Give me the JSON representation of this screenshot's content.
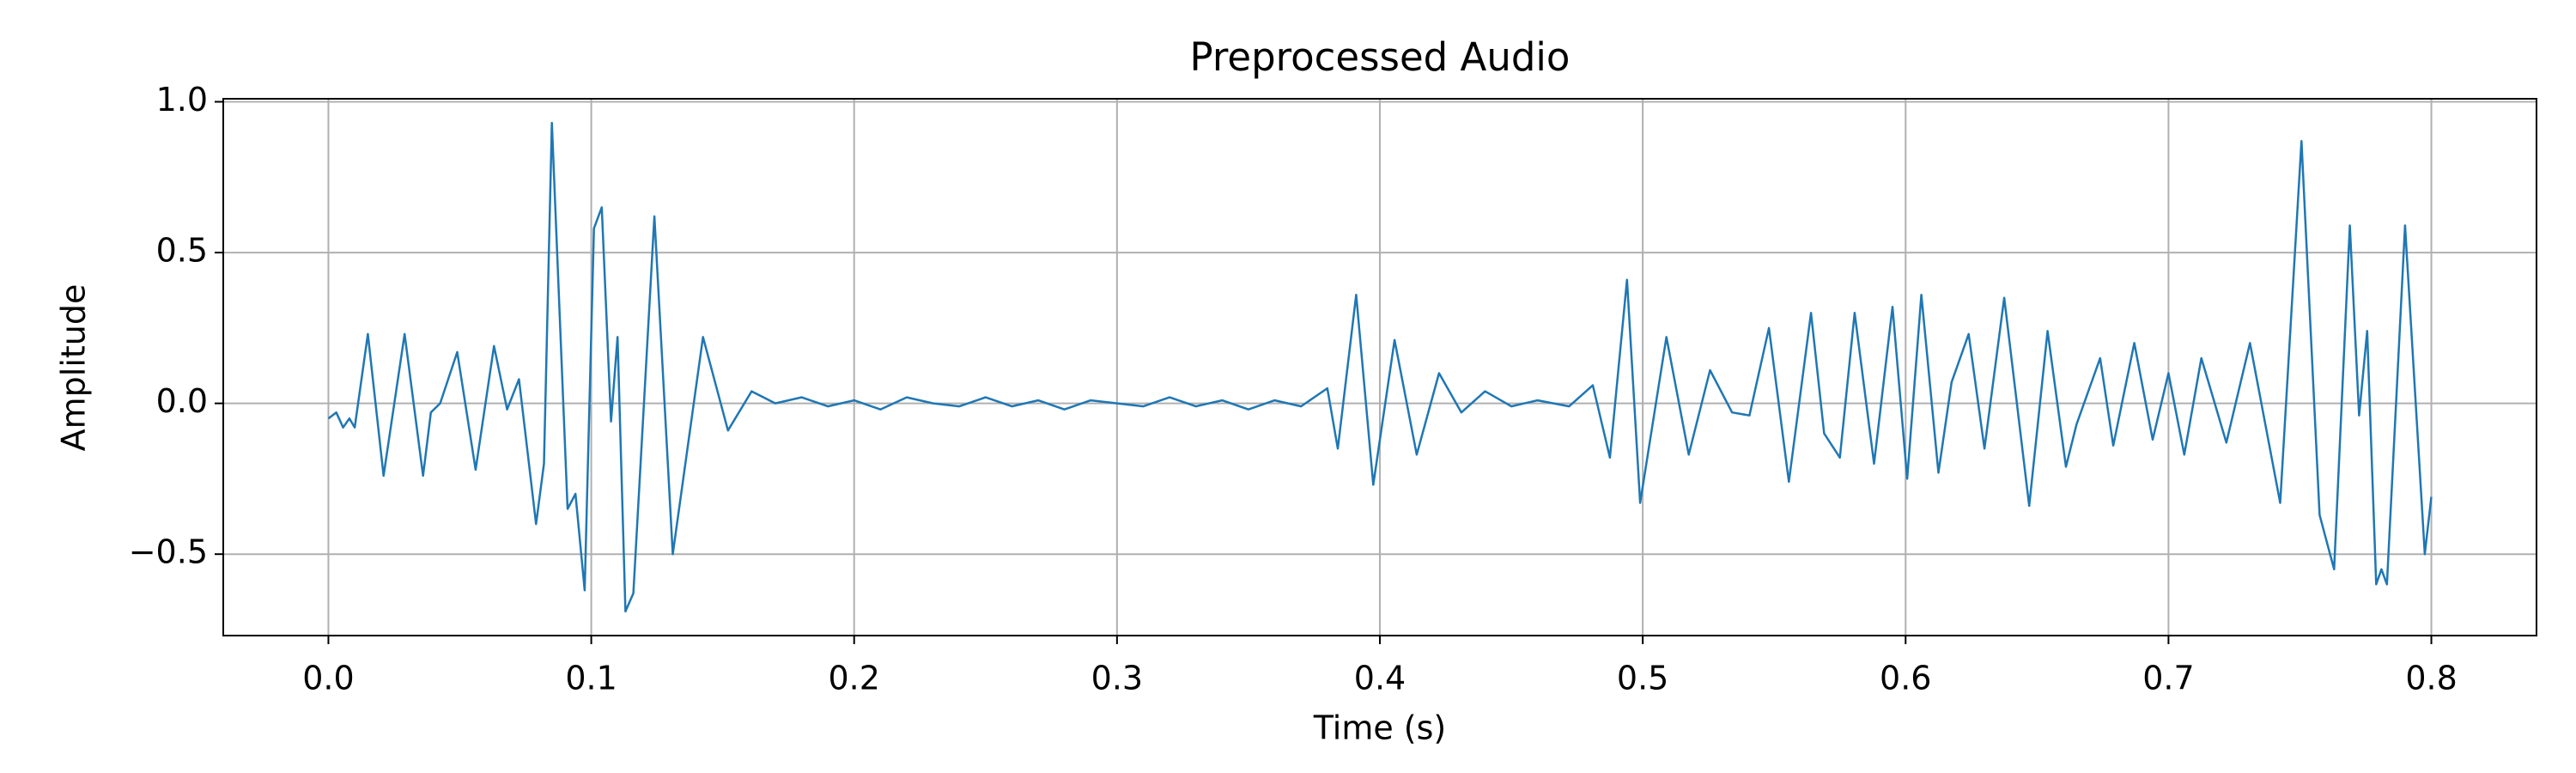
{
  "chart_data": {
    "type": "line",
    "title": "Preprocessed Audio",
    "x_label": "Time (s)",
    "y_label": "Amplitude",
    "xlim": [
      -0.04,
      0.84
    ],
    "ylim": [
      -0.77,
      1.01
    ],
    "xticks": [
      {
        "value": 0,
        "label": "0.0"
      },
      0.1,
      0.2,
      0.3,
      0.4,
      0.5,
      0.6,
      0.7,
      0.8
    ],
    "yticks": [
      {
        "value": -0.5,
        "label": "−0.5"
      },
      {
        "value": 0,
        "label": "0.0"
      },
      0.5,
      {
        "value": 1,
        "label": "1.0"
      }
    ],
    "grid": true,
    "x": [
      0,
      0.003,
      0.0056,
      0.008,
      0.01,
      0.015,
      0.021,
      0.029,
      0.036,
      0.039,
      0.0425,
      0.049,
      0.056,
      0.063,
      0.068,
      0.0725,
      0.079,
      0.082,
      0.085,
      0.091,
      0.094,
      0.0975,
      0.101,
      0.104,
      0.1075,
      0.11,
      0.113,
      0.116,
      0.124,
      0.131,
      0.1425,
      0.152,
      0.161,
      0.17,
      0.18,
      0.19,
      0.2,
      0.21,
      0.22,
      0.23,
      0.24,
      0.25,
      0.26,
      0.27,
      0.28,
      0.29,
      0.3,
      0.31,
      0.32,
      0.33,
      0.34,
      0.35,
      0.36,
      0.37,
      0.375,
      0.38,
      0.384,
      0.391,
      0.3975,
      0.4056,
      0.414,
      0.4225,
      0.431,
      0.44,
      0.45,
      0.46,
      0.472,
      0.481,
      0.4875,
      0.494,
      0.499,
      0.509,
      0.5175,
      0.5256,
      0.534,
      0.5406,
      0.548,
      0.5556,
      0.564,
      0.569,
      0.575,
      0.5806,
      0.588,
      0.595,
      0.6006,
      0.606,
      0.6125,
      0.6175,
      0.624,
      0.63,
      0.6375,
      0.647,
      0.654,
      0.661,
      0.665,
      0.674,
      0.679,
      0.687,
      0.694,
      0.7,
      0.706,
      0.7125,
      0.722,
      0.731,
      0.7425,
      0.7506,
      0.7575,
      0.763,
      0.769,
      0.7725,
      0.7756,
      0.779,
      0.781,
      0.7831,
      0.79,
      0.7975,
      0.8
    ],
    "series": [
      {
        "name": "Amplitude",
        "color": "#1f77b4",
        "values": [
          -0.05,
          -0.03,
          -0.08,
          -0.05,
          -0.08,
          0.23,
          -0.24,
          0.23,
          -0.24,
          -0.03,
          0.0,
          0.17,
          -0.22,
          0.19,
          -0.02,
          0.08,
          -0.4,
          -0.2,
          0.93,
          -0.35,
          -0.3,
          -0.62,
          0.58,
          0.65,
          -0.06,
          0.22,
          -0.69,
          -0.63,
          0.62,
          -0.5,
          0.22,
          -0.09,
          0.04,
          0.0,
          0.02,
          -0.01,
          0.01,
          -0.02,
          0.02,
          0.0,
          -0.01,
          0.02,
          -0.01,
          0.01,
          -0.02,
          0.01,
          0.0,
          -0.01,
          0.02,
          -0.01,
          0.01,
          -0.02,
          0.01,
          -0.01,
          0.02,
          0.05,
          -0.15,
          0.36,
          -0.27,
          0.21,
          -0.17,
          0.1,
          -0.03,
          0.04,
          -0.01,
          0.01,
          -0.01,
          0.06,
          -0.18,
          0.41,
          -0.33,
          0.22,
          -0.17,
          0.11,
          -0.03,
          -0.04,
          0.25,
          -0.26,
          0.3,
          -0.1,
          -0.18,
          0.3,
          -0.2,
          0.32,
          -0.25,
          0.36,
          -0.23,
          0.07,
          0.23,
          -0.15,
          0.35,
          -0.34,
          0.24,
          -0.21,
          -0.07,
          0.15,
          -0.14,
          0.2,
          -0.12,
          0.1,
          -0.17,
          0.15,
          -0.13,
          0.2,
          -0.33,
          0.87,
          -0.37,
          -0.55,
          0.59,
          -0.04,
          0.24,
          -0.6,
          -0.55,
          -0.6,
          0.59,
          -0.5,
          -0.31
        ]
      }
    ]
  }
}
